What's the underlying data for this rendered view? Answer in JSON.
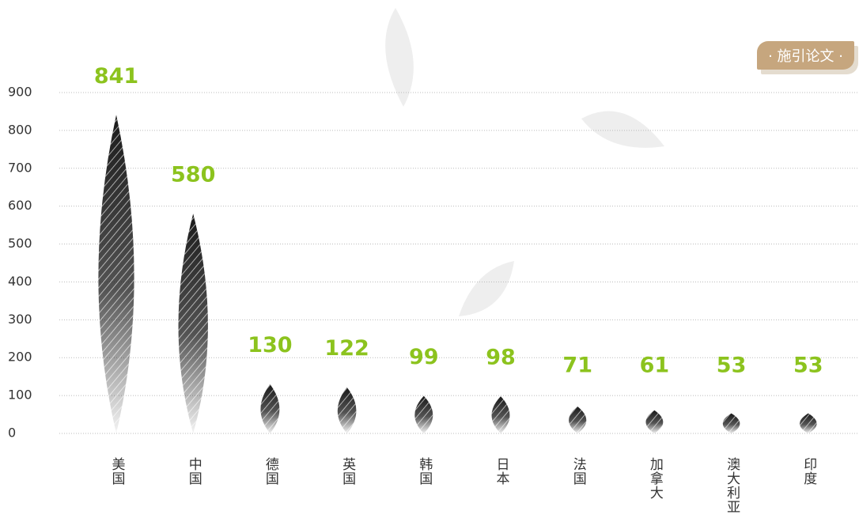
{
  "chart_data": {
    "type": "leaf",
    "categories": [
      "美国",
      "中国",
      "德国",
      "英国",
      "韩国",
      "日本",
      "法国",
      "加拿大",
      "澳大利亚",
      "印度"
    ],
    "series": [
      {
        "name": "· 施引论文 ·",
        "color": "#1a1a1a",
        "label_color": "#8cc31e",
        "values": [
          841,
          580,
          130,
          122,
          99,
          98,
          71,
          61,
          53,
          53
        ]
      }
    ],
    "ylim": [
      0,
      900
    ],
    "yticks": [
      0,
      100,
      200,
      300,
      400,
      500,
      600,
      700,
      800,
      900
    ],
    "grid": true
  }
}
